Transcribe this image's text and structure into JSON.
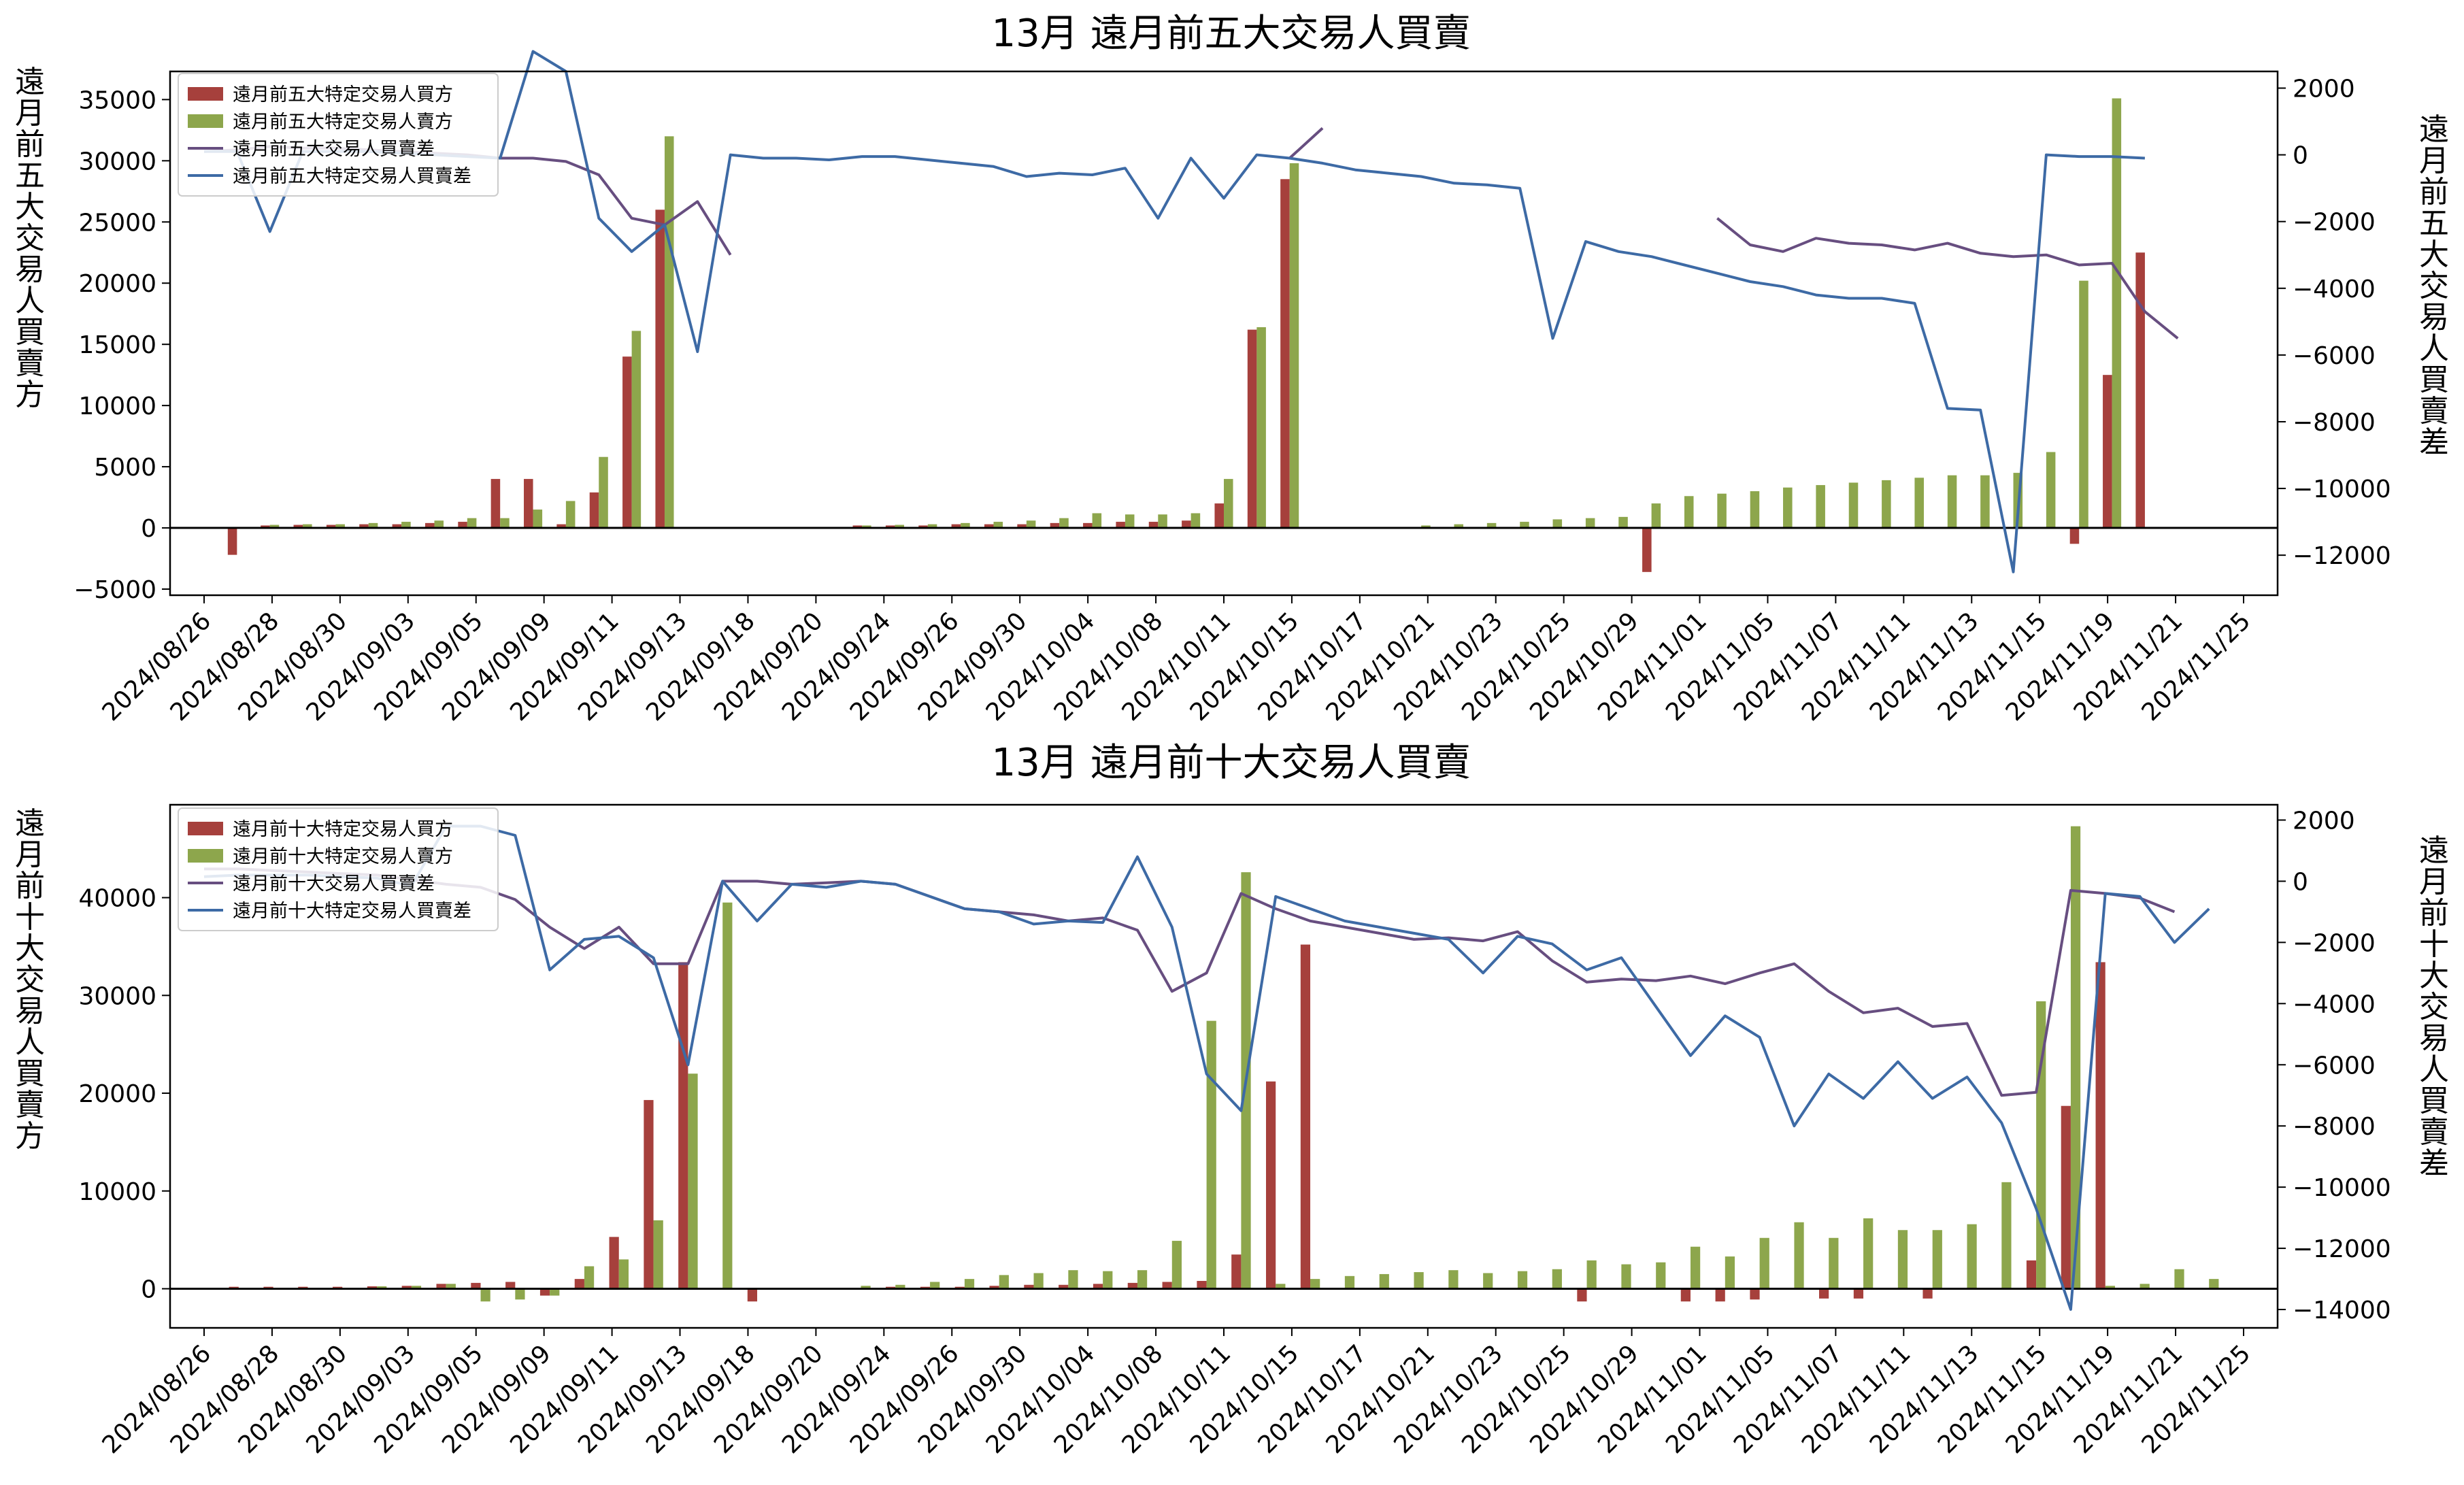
{
  "chart_data": [
    {
      "type": "bar+line",
      "title": "13月 遠月前五大交易人買賣",
      "ylabel_left": "遠月前五大交易人買賣方",
      "ylabel_right": "遠月前五大交易人買賣差",
      "ylim_left": [
        -5500,
        37300
      ],
      "yticks_left": [
        "−5000",
        "0",
        "5000",
        "10000",
        "15000",
        "20000",
        "25000",
        "30000",
        "35000"
      ],
      "ytick_values_left": [
        -5000,
        0,
        5000,
        10000,
        15000,
        20000,
        25000,
        30000,
        35000
      ],
      "ylim_right": [
        -13200,
        2500
      ],
      "yticks_right": [
        "−12000",
        "−10000",
        "−8000",
        "−6000",
        "−4000",
        "−2000",
        "0",
        "2000"
      ],
      "ytick_values_right": [
        -12000,
        -10000,
        -8000,
        -6000,
        -4000,
        -2000,
        0,
        2000
      ],
      "x_tick_labels": [
        "2024/08/26",
        "2024/08/28",
        "2024/08/30",
        "2024/09/03",
        "2024/09/05",
        "2024/09/09",
        "2024/09/11",
        "2024/09/13",
        "2024/09/18",
        "2024/09/20",
        "2024/09/24",
        "2024/09/26",
        "2024/09/30",
        "2024/10/04",
        "2024/10/08",
        "2024/10/11",
        "2024/10/15",
        "2024/10/17",
        "2024/10/21",
        "2024/10/23",
        "2024/10/25",
        "2024/10/29",
        "2024/11/01",
        "2024/11/05",
        "2024/11/07",
        "2024/11/11",
        "2024/11/13",
        "2024/11/15",
        "2024/11/19",
        "2024/11/21",
        "2024/11/25"
      ],
      "legend": {
        "placement": "upper-left",
        "entries": [
          "遠月前五大特定交易人買方",
          "遠月前五大特定交易人賣方",
          "遠月前五大交易人買賣差",
          "遠月前五大特定交易人買賣差"
        ]
      },
      "colors": {
        "buy": "#a6403c",
        "sell": "#8da64c",
        "diff_all": "#674e80",
        "diff_specific": "#3d6aa5"
      },
      "series": [
        {
          "name": "遠月前五大特定交易人買方",
          "kind": "bar",
          "axis": "left",
          "values": [
            0,
            -2200,
            200,
            250,
            250,
            300,
            300,
            400,
            500,
            4000,
            4000,
            300,
            2900,
            14000,
            26000,
            0,
            0,
            0,
            0,
            0,
            200,
            200,
            200,
            300,
            300,
            300,
            400,
            400,
            500,
            500,
            600,
            2000,
            16200,
            28500,
            0,
            0,
            0,
            0,
            0,
            0,
            0,
            0,
            0,
            0,
            -3600,
            0,
            0,
            0,
            0,
            0,
            0,
            0,
            0,
            0,
            0,
            0,
            0,
            -1300,
            12500,
            22500,
            0,
            0,
            0
          ]
        },
        {
          "name": "遠月前五大特定交易人賣方",
          "kind": "bar",
          "axis": "left",
          "values": [
            0,
            0,
            250,
            300,
            300,
            400,
            500,
            600,
            800,
            800,
            1500,
            2200,
            5800,
            16100,
            32000,
            0,
            0,
            0,
            0,
            0,
            200,
            250,
            300,
            400,
            500,
            600,
            800,
            1200,
            1100,
            1100,
            1200,
            4000,
            16400,
            29800,
            0,
            0,
            0,
            200,
            300,
            400,
            500,
            700,
            800,
            900,
            2000,
            2600,
            2800,
            3000,
            3300,
            3500,
            3700,
            3900,
            4100,
            4300,
            4300,
            4500,
            6200,
            20200,
            35100,
            0,
            0,
            0,
            0
          ]
        },
        {
          "name": "遠月前五大交易人買賣差",
          "kind": "line",
          "axis": "right",
          "values": [
            100,
            150,
            250,
            200,
            200,
            150,
            100,
            50,
            0,
            -100,
            -100,
            -200,
            -600,
            -1900,
            -2100,
            -1400,
            -3000,
            null,
            null,
            null,
            null,
            null,
            null,
            null,
            null,
            null,
            null,
            null,
            null,
            null,
            null,
            null,
            null,
            -100,
            800,
            null,
            null,
            null,
            null,
            null,
            null,
            null,
            null,
            null,
            null,
            null,
            -1900,
            -2700,
            -2900,
            -2500,
            -2650,
            -2700,
            -2850,
            -2650,
            -2950,
            -3050,
            -3000,
            -3300,
            -3250,
            -4700,
            -5500,
            null,
            null
          ]
        },
        {
          "name": "遠月前五大特定交易人買賣差",
          "kind": "line",
          "axis": "right",
          "values": [
            100,
            100,
            -2300,
            100,
            100,
            100,
            50,
            0,
            -50,
            -100,
            3100,
            2500,
            -1900,
            -2900,
            -2100,
            -5900,
            0,
            -100,
            -100,
            -150,
            -50,
            -50,
            -150,
            -250,
            -350,
            -650,
            -550,
            -600,
            -400,
            -1900,
            -100,
            -1300,
            0,
            -100,
            -250,
            -450,
            -550,
            -650,
            -850,
            -900,
            -1000,
            -5500,
            -2600,
            -2900,
            -3050,
            -3300,
            -3550,
            -3800,
            -3950,
            -4200,
            -4300,
            -4300,
            -4450,
            -7600,
            -7650,
            -12500,
            0,
            -50,
            -50,
            -100
          ]
        }
      ]
    },
    {
      "type": "bar+line",
      "title": "13月 遠月前十大交易人買賣",
      "ylabel_left": "遠月前十大交易人買賣方",
      "ylabel_right": "遠月前十大交易人買賣差",
      "ylim_left": [
        -4000,
        49500
      ],
      "yticks_left": [
        "0",
        "10000",
        "20000",
        "30000",
        "40000"
      ],
      "ytick_values_left": [
        0,
        10000,
        20000,
        30000,
        40000
      ],
      "ylim_right": [
        -14600,
        2500
      ],
      "yticks_right": [
        "−14000",
        "−12000",
        "−10000",
        "−8000",
        "−6000",
        "−4000",
        "−2000",
        "0",
        "2000"
      ],
      "ytick_values_right": [
        -14000,
        -12000,
        -10000,
        -8000,
        -6000,
        -4000,
        -2000,
        0,
        2000
      ],
      "x_tick_labels": [
        "2024/08/26",
        "2024/08/28",
        "2024/08/30",
        "2024/09/03",
        "2024/09/05",
        "2024/09/09",
        "2024/09/11",
        "2024/09/13",
        "2024/09/18",
        "2024/09/20",
        "2024/09/24",
        "2024/09/26",
        "2024/09/30",
        "2024/10/04",
        "2024/10/08",
        "2024/10/11",
        "2024/10/15",
        "2024/10/17",
        "2024/10/21",
        "2024/10/23",
        "2024/10/25",
        "2024/10/29",
        "2024/11/01",
        "2024/11/05",
        "2024/11/07",
        "2024/11/11",
        "2024/11/13",
        "2024/11/15",
        "2024/11/19",
        "2024/11/21",
        "2024/11/25"
      ],
      "legend": {
        "placement": "upper-left",
        "entries": [
          "遠月前十大特定交易人買方",
          "遠月前十大特定交易人賣方",
          "遠月前十大交易人買賣差",
          "遠月前十大特定交易人買賣差"
        ]
      },
      "colors": {
        "buy": "#a6403c",
        "sell": "#8da64c",
        "diff_all": "#674e80",
        "diff_specific": "#3d6aa5"
      },
      "series": [
        {
          "name": "遠月前十大特定交易人買方",
          "kind": "bar",
          "axis": "left",
          "values": [
            0,
            200,
            200,
            200,
            200,
            250,
            300,
            500,
            600,
            700,
            -700,
            1000,
            5300,
            19300,
            33400,
            0,
            -1300,
            0,
            0,
            0,
            200,
            200,
            200,
            300,
            400,
            400,
            500,
            600,
            700,
            800,
            3500,
            21200,
            35200,
            0,
            0,
            0,
            0,
            0,
            0,
            0,
            -1300,
            0,
            0,
            -1300,
            -1300,
            -1100,
            0,
            -1000,
            -1000,
            0,
            -1000,
            0,
            0,
            2900,
            18700,
            33400,
            0,
            0,
            0,
            0
          ]
        },
        {
          "name": "遠月前十大特定交易人賣方",
          "kind": "bar",
          "axis": "left",
          "values": [
            0,
            0,
            0,
            0,
            0,
            250,
            300,
            500,
            -1300,
            -1100,
            -700,
            2300,
            3000,
            7000,
            22000,
            39500,
            0,
            0,
            0,
            300,
            400,
            700,
            1000,
            1400,
            1600,
            1900,
            1800,
            1900,
            4900,
            27400,
            42600,
            500,
            1000,
            1300,
            1500,
            1700,
            1900,
            1600,
            1800,
            2000,
            2900,
            2500,
            2700,
            4300,
            3300,
            5200,
            6800,
            5200,
            7200,
            6000,
            6000,
            6600,
            10900,
            29400,
            47300,
            300,
            500,
            2000,
            1000
          ]
        },
        {
          "name": "遠月前十大交易人買賣差",
          "kind": "line",
          "axis": "right",
          "values": [
            400,
            400,
            350,
            300,
            250,
            200,
            50,
            -100,
            -200,
            -600,
            -1500,
            -2200,
            -1500,
            -2700,
            -2700,
            0,
            0,
            -100,
            -50,
            0,
            -100,
            -500,
            -900,
            -1000,
            -1100,
            -1300,
            -1200,
            -1600,
            -3600,
            -3000,
            -400,
            -900,
            -1300,
            -1500,
            -1700,
            -1900,
            -1850,
            -1950,
            -1650,
            -2600,
            -3300,
            -3200,
            -3250,
            -3100,
            -3350,
            -3000,
            -2700,
            -3600,
            -4300,
            -4150,
            -4750,
            -4650,
            -7000,
            -6900,
            -300,
            -400,
            -550,
            -1000
          ]
        },
        {
          "name": "遠月前十大特定交易人買賣差",
          "kind": "line",
          "axis": "right",
          "values": [
            150,
            200,
            200,
            200,
            150,
            100,
            -150,
            1800,
            1800,
            1500,
            -2900,
            -1900,
            -1800,
            -2500,
            -6000,
            0,
            -1300,
            -100,
            -200,
            0,
            -100,
            -500,
            -900,
            -1000,
            -1400,
            -1300,
            -1350,
            800,
            -1500,
            -6300,
            -7500,
            -500,
            -900,
            -1300,
            -1500,
            -1700,
            -1900,
            -3000,
            -1800,
            -2050,
            -2900,
            -2500,
            -4100,
            -5700,
            -4400,
            -5100,
            -8000,
            -6300,
            -7100,
            -5900,
            -7100,
            -6400,
            -7900,
            -10700,
            -14000,
            -400,
            -500,
            -2000,
            -900
          ]
        }
      ]
    }
  ]
}
